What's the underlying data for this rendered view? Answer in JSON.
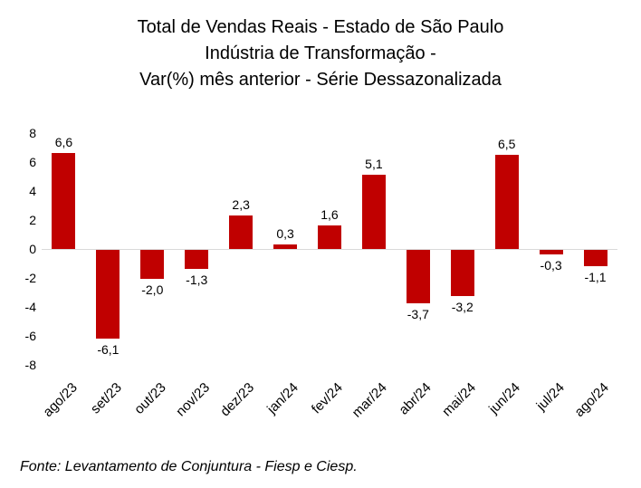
{
  "title": {
    "line1": "Total de Vendas Reais - Estado de São Paulo",
    "line2": "Indústria de Transformação -",
    "line3": "Var(%) mês anterior - Série Dessazonalizada"
  },
  "source": "Fonte: Levantamento de Conjuntura - Fiesp e Ciesp.",
  "chart_data": {
    "type": "bar",
    "title": "Total de Vendas Reais - Estado de São Paulo Indústria de Transformação - Var(%) mês anterior - Série Dessazonalizada",
    "categories": [
      "ago/23",
      "set/23",
      "out/23",
      "nov/23",
      "dez/23",
      "jan/24",
      "fev/24",
      "mar/24",
      "abr/24",
      "mai/24",
      "jun/24",
      "jul/24",
      "ago/24"
    ],
    "values": [
      6.6,
      -6.1,
      -2.0,
      -1.3,
      2.3,
      0.3,
      1.6,
      5.1,
      -3.7,
      -3.2,
      6.5,
      -0.3,
      -1.1
    ],
    "value_labels": [
      "6,6",
      "-6,1",
      "-2,0",
      "-1,3",
      "2,3",
      "0,3",
      "1,6",
      "5,1",
      "-3,7",
      "-3,2",
      "6,5",
      "-0,3",
      "-1,1"
    ],
    "xlabel": "",
    "ylabel": "",
    "ylim": [
      -8,
      8
    ],
    "yticks": [
      8,
      6,
      4,
      2,
      0,
      -2,
      -4,
      -6,
      -8
    ],
    "bar_color": "#c00000",
    "zero_line_color": "#d9d9d9",
    "grid": false,
    "legend": "none"
  }
}
